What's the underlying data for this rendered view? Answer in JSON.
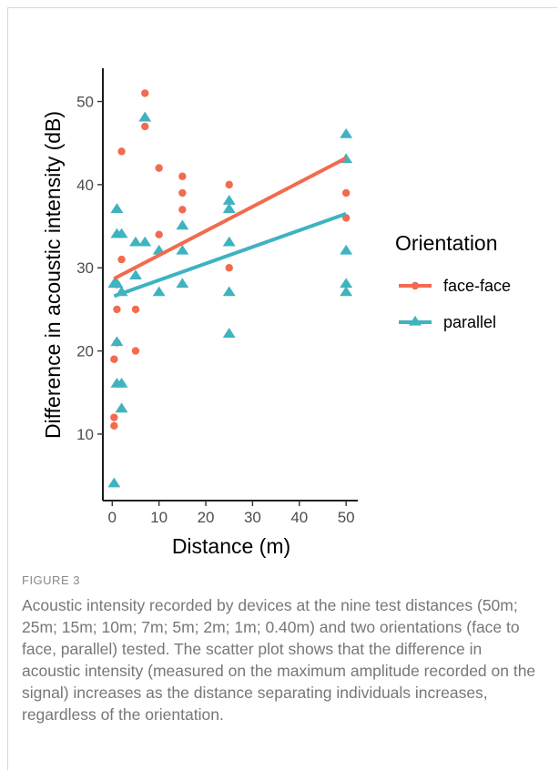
{
  "chart_data": {
    "type": "scatter",
    "xlabel": "Distance (m)",
    "ylabel": "Difference in acoustic intensity (dB)",
    "xlim": [
      -2,
      52.5
    ],
    "ylim": [
      2,
      54
    ],
    "x_ticks": [
      0,
      10,
      20,
      30,
      40,
      50
    ],
    "y_ticks": [
      10,
      20,
      30,
      40,
      50
    ],
    "grid": false,
    "legend_title": "Orientation",
    "legend_position": "right",
    "series": [
      {
        "name": "face-face",
        "color": "#F26B4E",
        "marker": "circle",
        "points": [
          [
            0.4,
            19
          ],
          [
            0.4,
            12
          ],
          [
            0.4,
            11
          ],
          [
            1,
            28
          ],
          [
            1,
            25
          ],
          [
            1,
            21
          ],
          [
            2,
            44
          ],
          [
            2,
            31
          ],
          [
            5,
            25
          ],
          [
            5,
            20
          ],
          [
            7,
            51
          ],
          [
            7,
            47
          ],
          [
            10,
            42
          ],
          [
            10,
            34
          ],
          [
            15,
            41
          ],
          [
            15,
            39
          ],
          [
            15,
            37
          ],
          [
            25,
            40
          ],
          [
            25,
            30
          ],
          [
            50,
            39
          ],
          [
            50,
            36
          ]
        ],
        "trend": {
          "x": [
            0.4,
            50
          ],
          "y": [
            28.7,
            43.2
          ]
        }
      },
      {
        "name": "parallel",
        "color": "#3FB3C0",
        "marker": "triangle",
        "points": [
          [
            0.4,
            28
          ],
          [
            0.4,
            4
          ],
          [
            1,
            37
          ],
          [
            1,
            34
          ],
          [
            1,
            28
          ],
          [
            1,
            21
          ],
          [
            1,
            16
          ],
          [
            2,
            34
          ],
          [
            2,
            27
          ],
          [
            2,
            16
          ],
          [
            2,
            13
          ],
          [
            5,
            33
          ],
          [
            5,
            29
          ],
          [
            7,
            48
          ],
          [
            7,
            33
          ],
          [
            10,
            32
          ],
          [
            10,
            27
          ],
          [
            15,
            35
          ],
          [
            15,
            32
          ],
          [
            15,
            28
          ],
          [
            25,
            38
          ],
          [
            25,
            37
          ],
          [
            25,
            33
          ],
          [
            25,
            27
          ],
          [
            25,
            22
          ],
          [
            50,
            46
          ],
          [
            50,
            43
          ],
          [
            50,
            32
          ],
          [
            50,
            28
          ],
          [
            50,
            27
          ]
        ],
        "trend": {
          "x": [
            0.4,
            50
          ],
          "y": [
            26.6,
            36.5
          ]
        }
      }
    ]
  },
  "caption": {
    "label": "FIGURE 3",
    "text": "Acoustic intensity recorded by devices at the nine test distances (50m; 25m; 15m; 10m; 7m; 5m; 2m; 1m; 0.40m) and two orientations (face to face, parallel) tested. The scatter plot shows that the difference in acoustic intensity (measured on the maximum amplitude recorded on the signal) increases as the distance separating individuals increases, regardless of the orientation."
  }
}
